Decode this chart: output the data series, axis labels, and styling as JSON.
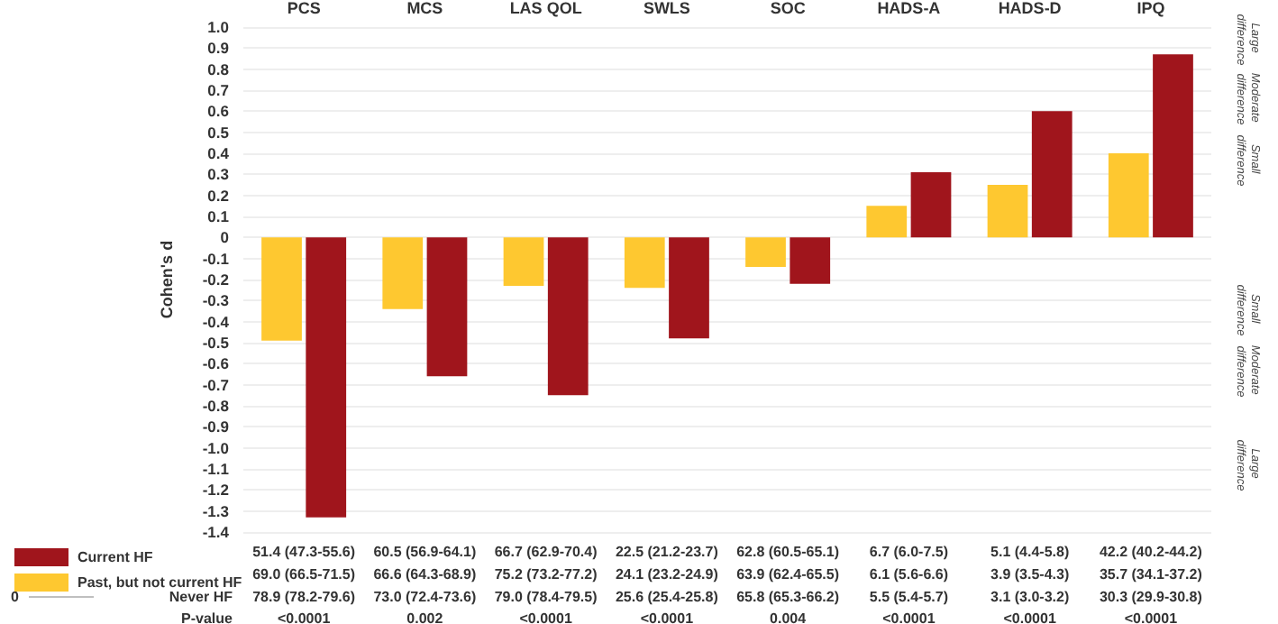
{
  "chart_data": {
    "type": "bar",
    "categories": [
      "PCS",
      "MCS",
      "LAS QOL",
      "SWLS",
      "SOC",
      "HADS-A",
      "HADS-D",
      "IPQ"
    ],
    "ylabel": "Cohen's d",
    "series": [
      {
        "name": "Current HF",
        "color": "#a0151c",
        "values": [
          -1.33,
          -0.66,
          -0.75,
          -0.48,
          -0.22,
          0.31,
          0.6,
          0.87
        ]
      },
      {
        "name": "Past, but not current HF",
        "color": "#fec830",
        "values": [
          -0.49,
          -0.34,
          -0.23,
          -0.24,
          -0.14,
          0.15,
          0.25,
          0.4
        ]
      }
    ],
    "ylim": [
      -1.4,
      1
    ],
    "yticks": [
      {
        "value": -1.4,
        "label": "-1.4"
      },
      -1.3,
      -1.2,
      -1.1,
      {
        "value": -1,
        "label": "-1.0"
      },
      -0.9,
      -0.8,
      -0.7,
      -0.6,
      -0.5,
      -0.4,
      -0.3,
      -0.2,
      -0.1,
      0,
      0.1,
      0.2,
      0.3,
      0.4,
      0.5,
      0.6,
      0.7,
      0.8,
      0.9,
      {
        "value": 1,
        "label": "1.0"
      }
    ],
    "grid": "y",
    "legend": "bottom left",
    "annotations": [
      "51.4 (47.3-55.6)",
      "60.5 (56.9-64.1)",
      "66.7 (62.9-70.4)",
      "22.5 (21.2-23.7)",
      "62.8 (60.5-65.1)",
      "6.7 (6.0-7.5)",
      "5.1 (4.4-5.8)",
      "42.2 (40.2-44.2)",
      "69.0 (66.5-71.5)",
      "66.6 (64.3-68.9)",
      "75.2 (73.2-77.2)",
      "24.1 (23.2-24.9)",
      "63.9 (62.4-65.5)",
      "6.1 (5.6-6.6)",
      "3.9 (3.5-4.3)",
      "35.7 (34.1-37.2)",
      "Never HF",
      "78.9 (78.2-79.6)",
      "73.0 (72.4-73.6)",
      "79.0 (78.4-79.5)",
      "25.6 (25.4-25.8)",
      "65.8 (65.3-66.2)",
      "5.5 (5.4-5.7)",
      "3.1 (3.0-3.2)",
      "30.3 (29.9-30.8)",
      "P-value",
      "<0.0001",
      "0.002",
      "<0.0001",
      "<0.0001",
      "0.004",
      "<0.0001",
      "<0.0001",
      "<0.0001",
      "0",
      "Large difference",
      "Moderate difference",
      "Small difference",
      "Small difference",
      "Moderate difference",
      "Large difference"
    ]
  }
}
